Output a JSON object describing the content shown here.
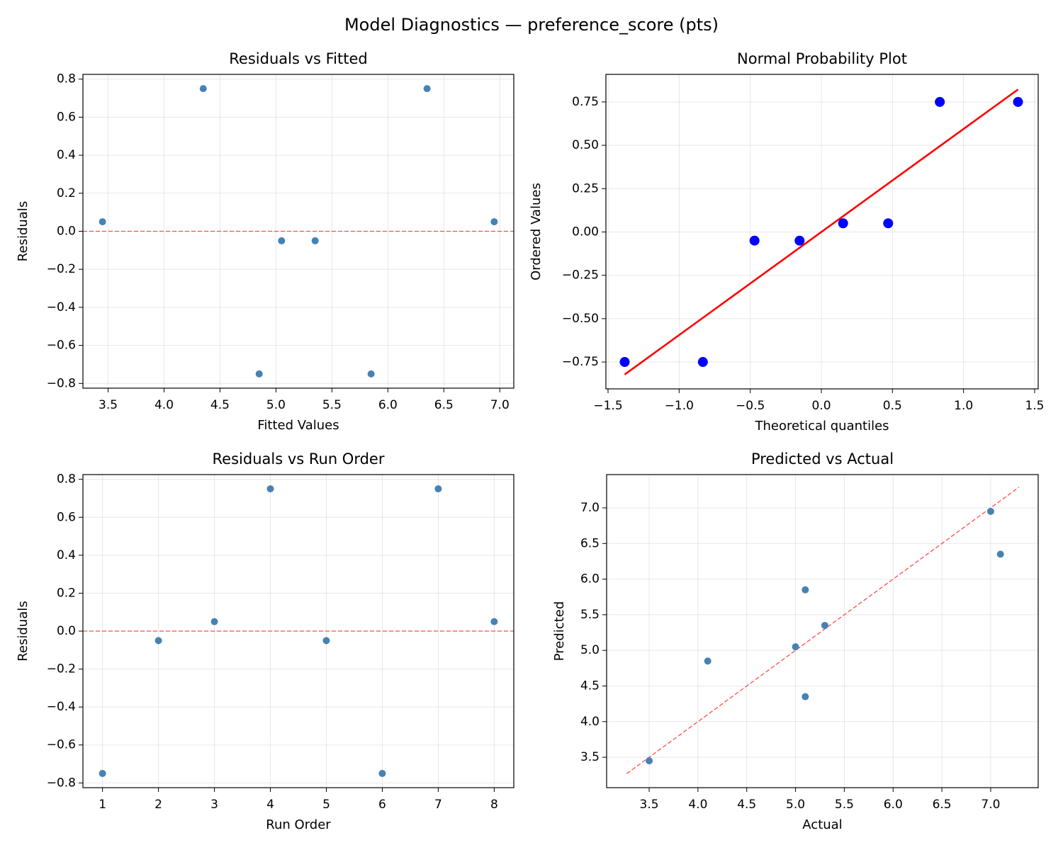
{
  "title": "Model Diagnostics — preference_score (pts)",
  "chart_data": [
    {
      "type": "scatter",
      "title": "Residuals vs Fitted",
      "xlabel": "Fitted Values",
      "ylabel": "Residuals",
      "x": [
        3.45,
        4.35,
        4.85,
        5.05,
        5.35,
        5.85,
        6.35,
        6.95
      ],
      "values": [
        0.05,
        0.75,
        -0.75,
        -0.05,
        -0.05,
        -0.75,
        0.75,
        0.05
      ],
      "color": "#4682b4",
      "grid": true,
      "hline": 0,
      "line_color": "#ff4d4d",
      "line_style": "dashed",
      "xlim": [
        3.275,
        7.125
      ],
      "ylim": [
        -0.825,
        0.825
      ],
      "xticks": [
        3.5,
        {
          "value": 4,
          "label": "4.0"
        },
        4.5,
        {
          "value": 5,
          "label": "5.0"
        },
        5.5,
        {
          "value": 6,
          "label": "6.0"
        },
        6.5,
        {
          "value": 7,
          "label": "7.0"
        }
      ],
      "yticks": [
        {
          "value": -0.8,
          "label": "−0.8"
        },
        {
          "value": -0.6,
          "label": "−0.6"
        },
        {
          "value": -0.4,
          "label": "−0.4"
        },
        {
          "value": -0.2,
          "label": "−0.2"
        },
        {
          "value": 0,
          "label": "0.0"
        },
        0.2,
        0.4,
        0.6,
        0.8
      ]
    },
    {
      "type": "scatter",
      "title": "Normal Probability Plot",
      "xlabel": "Theoretical quantiles",
      "ylabel": "Ordered Values",
      "x": [
        -1.383,
        -0.833,
        -0.47,
        -0.153,
        0.153,
        0.47,
        0.833,
        1.383
      ],
      "values": [
        -0.75,
        -0.75,
        -0.05,
        -0.05,
        0.05,
        0.05,
        0.75,
        0.75
      ],
      "color": "#0000ff",
      "grid": true,
      "fit_line": {
        "x": [
          -1.383,
          1.383
        ],
        "y": [
          -0.822,
          0.822
        ]
      },
      "line_color": "#ff0000",
      "line_style": "solid",
      "xlim": [
        -1.515,
        1.525
      ],
      "ylim": [
        -0.905,
        0.909
      ],
      "xticks": [
        {
          "value": -1.5,
          "label": "−1.5"
        },
        {
          "value": -1,
          "label": "−1.0"
        },
        {
          "value": -0.5,
          "label": "−0.5"
        },
        {
          "value": 0,
          "label": "0.0"
        },
        0.5,
        {
          "value": 1,
          "label": "1.0"
        },
        1.5
      ],
      "yticks": [
        {
          "value": -0.75,
          "label": "−0.75"
        },
        {
          "value": -0.5,
          "label": "−0.50"
        },
        {
          "value": -0.25,
          "label": "−0.25"
        },
        {
          "value": 0,
          "label": "0.00"
        },
        0.25,
        {
          "value": 0.5,
          "label": "0.50"
        },
        0.75
      ]
    },
    {
      "type": "scatter",
      "title": "Residuals vs Run Order",
      "xlabel": "Run Order",
      "ylabel": "Residuals",
      "x": [
        1,
        2,
        3,
        4,
        5,
        6,
        7,
        8
      ],
      "values": [
        -0.75,
        -0.05,
        0.05,
        0.75,
        -0.05,
        -0.75,
        0.75,
        0.05
      ],
      "color": "#4682b4",
      "grid": true,
      "hline": 0,
      "line_color": "#ff4d4d",
      "line_style": "dashed",
      "xlim": [
        0.65,
        8.35
      ],
      "ylim": [
        -0.825,
        0.825
      ],
      "xticks": [
        1,
        2,
        3,
        4,
        5,
        6,
        7,
        8
      ],
      "yticks": [
        {
          "value": -0.8,
          "label": "−0.8"
        },
        {
          "value": -0.6,
          "label": "−0.6"
        },
        {
          "value": -0.4,
          "label": "−0.4"
        },
        {
          "value": -0.2,
          "label": "−0.2"
        },
        {
          "value": 0,
          "label": "0.0"
        },
        0.2,
        0.4,
        0.6,
        0.8
      ]
    },
    {
      "type": "scatter",
      "title": "Predicted vs Actual",
      "xlabel": "Actual",
      "ylabel": "Predicted",
      "x": [
        3.5,
        4.1,
        5.0,
        5.1,
        5.1,
        5.3,
        7.0,
        7.1
      ],
      "values": [
        3.45,
        4.85,
        5.05,
        5.85,
        4.35,
        5.35,
        6.95,
        6.35
      ],
      "color": "#4682b4",
      "grid": true,
      "fit_line": {
        "x": [
          3.27,
          7.29
        ],
        "y": [
          3.27,
          7.29
        ]
      },
      "line_color": "#ff4d4d",
      "line_style": "dashed",
      "xlim": [
        3.064,
        7.487
      ],
      "ylim": [
        3.073,
        7.467
      ],
      "xticks": [
        3.5,
        {
          "value": 4,
          "label": "4.0"
        },
        4.5,
        {
          "value": 5,
          "label": "5.0"
        },
        5.5,
        {
          "value": 6,
          "label": "6.0"
        },
        6.5,
        {
          "value": 7,
          "label": "7.0"
        }
      ],
      "yticks": [
        3.5,
        {
          "value": 4,
          "label": "4.0"
        },
        4.5,
        {
          "value": 5,
          "label": "5.0"
        },
        5.5,
        {
          "value": 6,
          "label": "6.0"
        },
        6.5,
        {
          "value": 7,
          "label": "7.0"
        }
      ]
    }
  ]
}
